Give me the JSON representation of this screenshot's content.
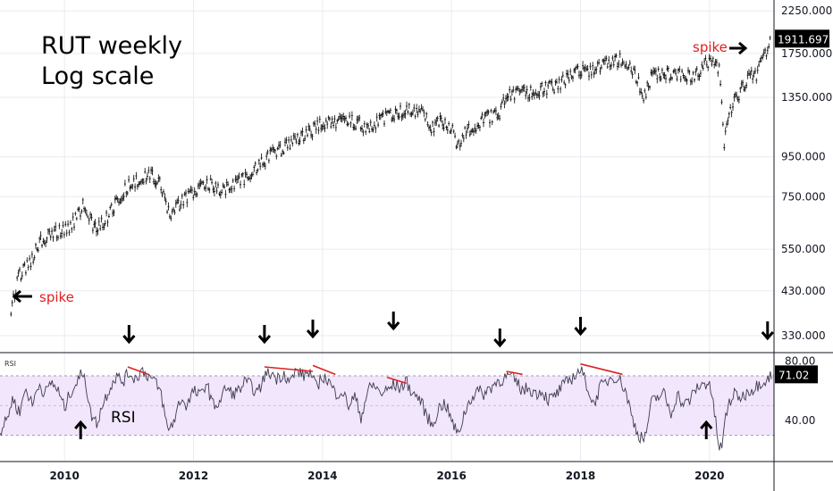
{
  "chart_data": [
    {
      "type": "line",
      "title_lines": [
        "RUT weekly",
        "Log scale"
      ],
      "y_scale": "log",
      "y_ticks": [
        330,
        430,
        550,
        750,
        950,
        1350,
        1750,
        2250
      ],
      "y_tick_labels": [
        "330.000",
        "430.000",
        "550.000",
        "750.000",
        "950.000",
        "1350.000",
        "1750.000",
        "2250.000"
      ],
      "ylim": [
        300,
        2350
      ],
      "x_ticks": [
        2010,
        2012,
        2014,
        2016,
        2018,
        2020
      ],
      "x_tick_labels": [
        "2010",
        "2012",
        "2014",
        "2016",
        "2018",
        "2020"
      ],
      "xlim": [
        2009.0,
        2021.0
      ],
      "last_value_label": "1911.697",
      "series": [
        {
          "x": [
            2009.17,
            2009.22,
            2009.3,
            2009.42,
            2009.5,
            2009.6,
            2009.75,
            2009.9,
            2010.05,
            2010.15,
            2010.3,
            2010.35,
            2010.45,
            2010.55,
            2010.65,
            2010.8,
            2010.95,
            2011.1,
            2011.3,
            2011.4,
            2011.5,
            2011.55,
            2011.65,
            2011.75,
            2011.85,
            2012.0,
            2012.2,
            2012.35,
            2012.45,
            2012.6,
            2012.75,
            2012.9,
            2013.0,
            2013.2,
            2013.4,
            2013.5,
            2013.6,
            2013.8,
            2013.95,
            2014.1,
            2014.25,
            2014.4,
            2014.55,
            2014.7,
            2014.8,
            2014.95,
            2015.1,
            2015.3,
            2015.45,
            2015.6,
            2015.7,
            2015.85,
            2016.0,
            2016.1,
            2016.2,
            2016.35,
            2016.5,
            2016.75,
            2016.85,
            2016.95,
            2017.2,
            2017.45,
            2017.65,
            2017.85,
            2018.0,
            2018.1,
            2018.25,
            2018.45,
            2018.65,
            2018.75,
            2018.9,
            2018.98,
            2019.1,
            2019.3,
            2019.45,
            2019.6,
            2019.75,
            2019.95,
            2020.05,
            2020.15,
            2020.22,
            2020.35,
            2020.5,
            2020.65,
            2020.75,
            2020.85,
            2020.95
          ],
          "values": [
            370,
            420,
            470,
            500,
            520,
            570,
            600,
            610,
            620,
            650,
            720,
            690,
            620,
            630,
            660,
            720,
            790,
            820,
            860,
            840,
            800,
            730,
            670,
            710,
            740,
            760,
            820,
            790,
            780,
            800,
            830,
            860,
            900,
            960,
            1000,
            1030,
            1060,
            1100,
            1150,
            1170,
            1160,
            1180,
            1160,
            1120,
            1160,
            1190,
            1220,
            1260,
            1250,
            1200,
            1130,
            1170,
            1130,
            1000,
            1090,
            1140,
            1190,
            1230,
            1380,
            1370,
            1390,
            1420,
            1450,
            1540,
            1580,
            1560,
            1620,
            1660,
            1690,
            1650,
            1480,
            1340,
            1530,
            1570,
            1530,
            1560,
            1520,
            1660,
            1680,
            1600,
            1020,
            1280,
            1420,
            1530,
            1550,
            1730,
            1910
          ]
        }
      ],
      "annotations": [
        {
          "label": "spike",
          "x": 2009.2,
          "y": 410,
          "arrow": "left"
        },
        {
          "label": "spike",
          "x": 2020.3,
          "y": 1790,
          "arrow": "right"
        }
      ],
      "down_arrows_x": [
        2011.0,
        2013.1,
        2013.85,
        2015.1,
        2016.75,
        2018.0,
        2020.9
      ]
    },
    {
      "type": "line",
      "panel_label": "RSI",
      "label": "RSI",
      "ylim": [
        13,
        85
      ],
      "y_ticks": [
        40,
        80
      ],
      "y_tick_labels": [
        "40.00",
        "80.00"
      ],
      "band": [
        30,
        70
      ],
      "last_value_label": "71.02",
      "series": [
        {
          "x": [
            2009.0,
            2009.1,
            2009.2,
            2009.3,
            2009.4,
            2009.5,
            2009.6,
            2009.7,
            2009.8,
            2009.9,
            2010.0,
            2010.1,
            2010.2,
            2010.3,
            2010.4,
            2010.5,
            2010.6,
            2010.7,
            2010.8,
            2010.9,
            2011.0,
            2011.1,
            2011.2,
            2011.3,
            2011.4,
            2011.5,
            2011.55,
            2011.6,
            2011.7,
            2011.8,
            2011.9,
            2012.0,
            2012.1,
            2012.2,
            2012.3,
            2012.4,
            2012.5,
            2012.6,
            2012.7,
            2012.8,
            2012.9,
            2013.0,
            2013.1,
            2013.2,
            2013.3,
            2013.4,
            2013.5,
            2013.6,
            2013.7,
            2013.8,
            2013.9,
            2014.0,
            2014.1,
            2014.2,
            2014.3,
            2014.4,
            2014.5,
            2014.6,
            2014.7,
            2014.8,
            2014.9,
            2015.0,
            2015.1,
            2015.2,
            2015.3,
            2015.4,
            2015.5,
            2015.6,
            2015.7,
            2015.8,
            2015.9,
            2016.0,
            2016.1,
            2016.2,
            2016.3,
            2016.4,
            2016.5,
            2016.6,
            2016.7,
            2016.8,
            2016.9,
            2017.0,
            2017.1,
            2017.2,
            2017.3,
            2017.4,
            2017.5,
            2017.6,
            2017.7,
            2017.8,
            2017.9,
            2018.0,
            2018.1,
            2018.2,
            2018.3,
            2018.4,
            2018.5,
            2018.6,
            2018.7,
            2018.8,
            2018.9,
            2019.0,
            2019.1,
            2019.2,
            2019.3,
            2019.4,
            2019.5,
            2019.6,
            2019.7,
            2019.8,
            2019.9,
            2020.0,
            2020.1,
            2020.15,
            2020.2,
            2020.25,
            2020.3,
            2020.4,
            2020.5,
            2020.6,
            2020.7,
            2020.8,
            2020.9,
            2020.97
          ],
          "values": [
            32,
            40,
            55,
            45,
            62,
            50,
            65,
            58,
            66,
            60,
            48,
            60,
            66,
            74,
            45,
            38,
            52,
            62,
            70,
            66,
            72,
            68,
            74,
            70,
            66,
            58,
            45,
            33,
            40,
            55,
            50,
            60,
            56,
            66,
            50,
            52,
            62,
            58,
            60,
            66,
            63,
            58,
            70,
            72,
            68,
            72,
            66,
            74,
            70,
            73,
            62,
            70,
            66,
            58,
            60,
            50,
            56,
            42,
            60,
            64,
            58,
            60,
            64,
            62,
            66,
            58,
            55,
            45,
            36,
            48,
            52,
            40,
            30,
            45,
            55,
            60,
            58,
            62,
            66,
            68,
            70,
            66,
            60,
            62,
            58,
            60,
            54,
            56,
            62,
            66,
            70,
            74,
            64,
            50,
            62,
            66,
            70,
            68,
            60,
            42,
            30,
            28,
            52,
            56,
            58,
            44,
            58,
            50,
            54,
            62,
            64,
            66,
            38,
            20,
            24,
            42,
            52,
            58,
            55,
            60,
            62,
            66,
            68,
            71
          ]
        }
      ],
      "resistance_lines": [
        {
          "x": [
            2010.98,
            2011.3
          ],
          "y": [
            76,
            71
          ]
        },
        {
          "x": [
            2013.1,
            2013.85
          ],
          "y": [
            76,
            73
          ]
        },
        {
          "x": [
            2013.85,
            2014.2
          ],
          "y": [
            77,
            71
          ]
        },
        {
          "x": [
            2015.0,
            2015.3
          ],
          "y": [
            69,
            65
          ]
        },
        {
          "x": [
            2016.85,
            2017.1
          ],
          "y": [
            73,
            71
          ]
        },
        {
          "x": [
            2018.0,
            2018.65
          ],
          "y": [
            78,
            71
          ]
        }
      ],
      "up_arrows_x": [
        2010.25,
        2019.95
      ]
    }
  ]
}
